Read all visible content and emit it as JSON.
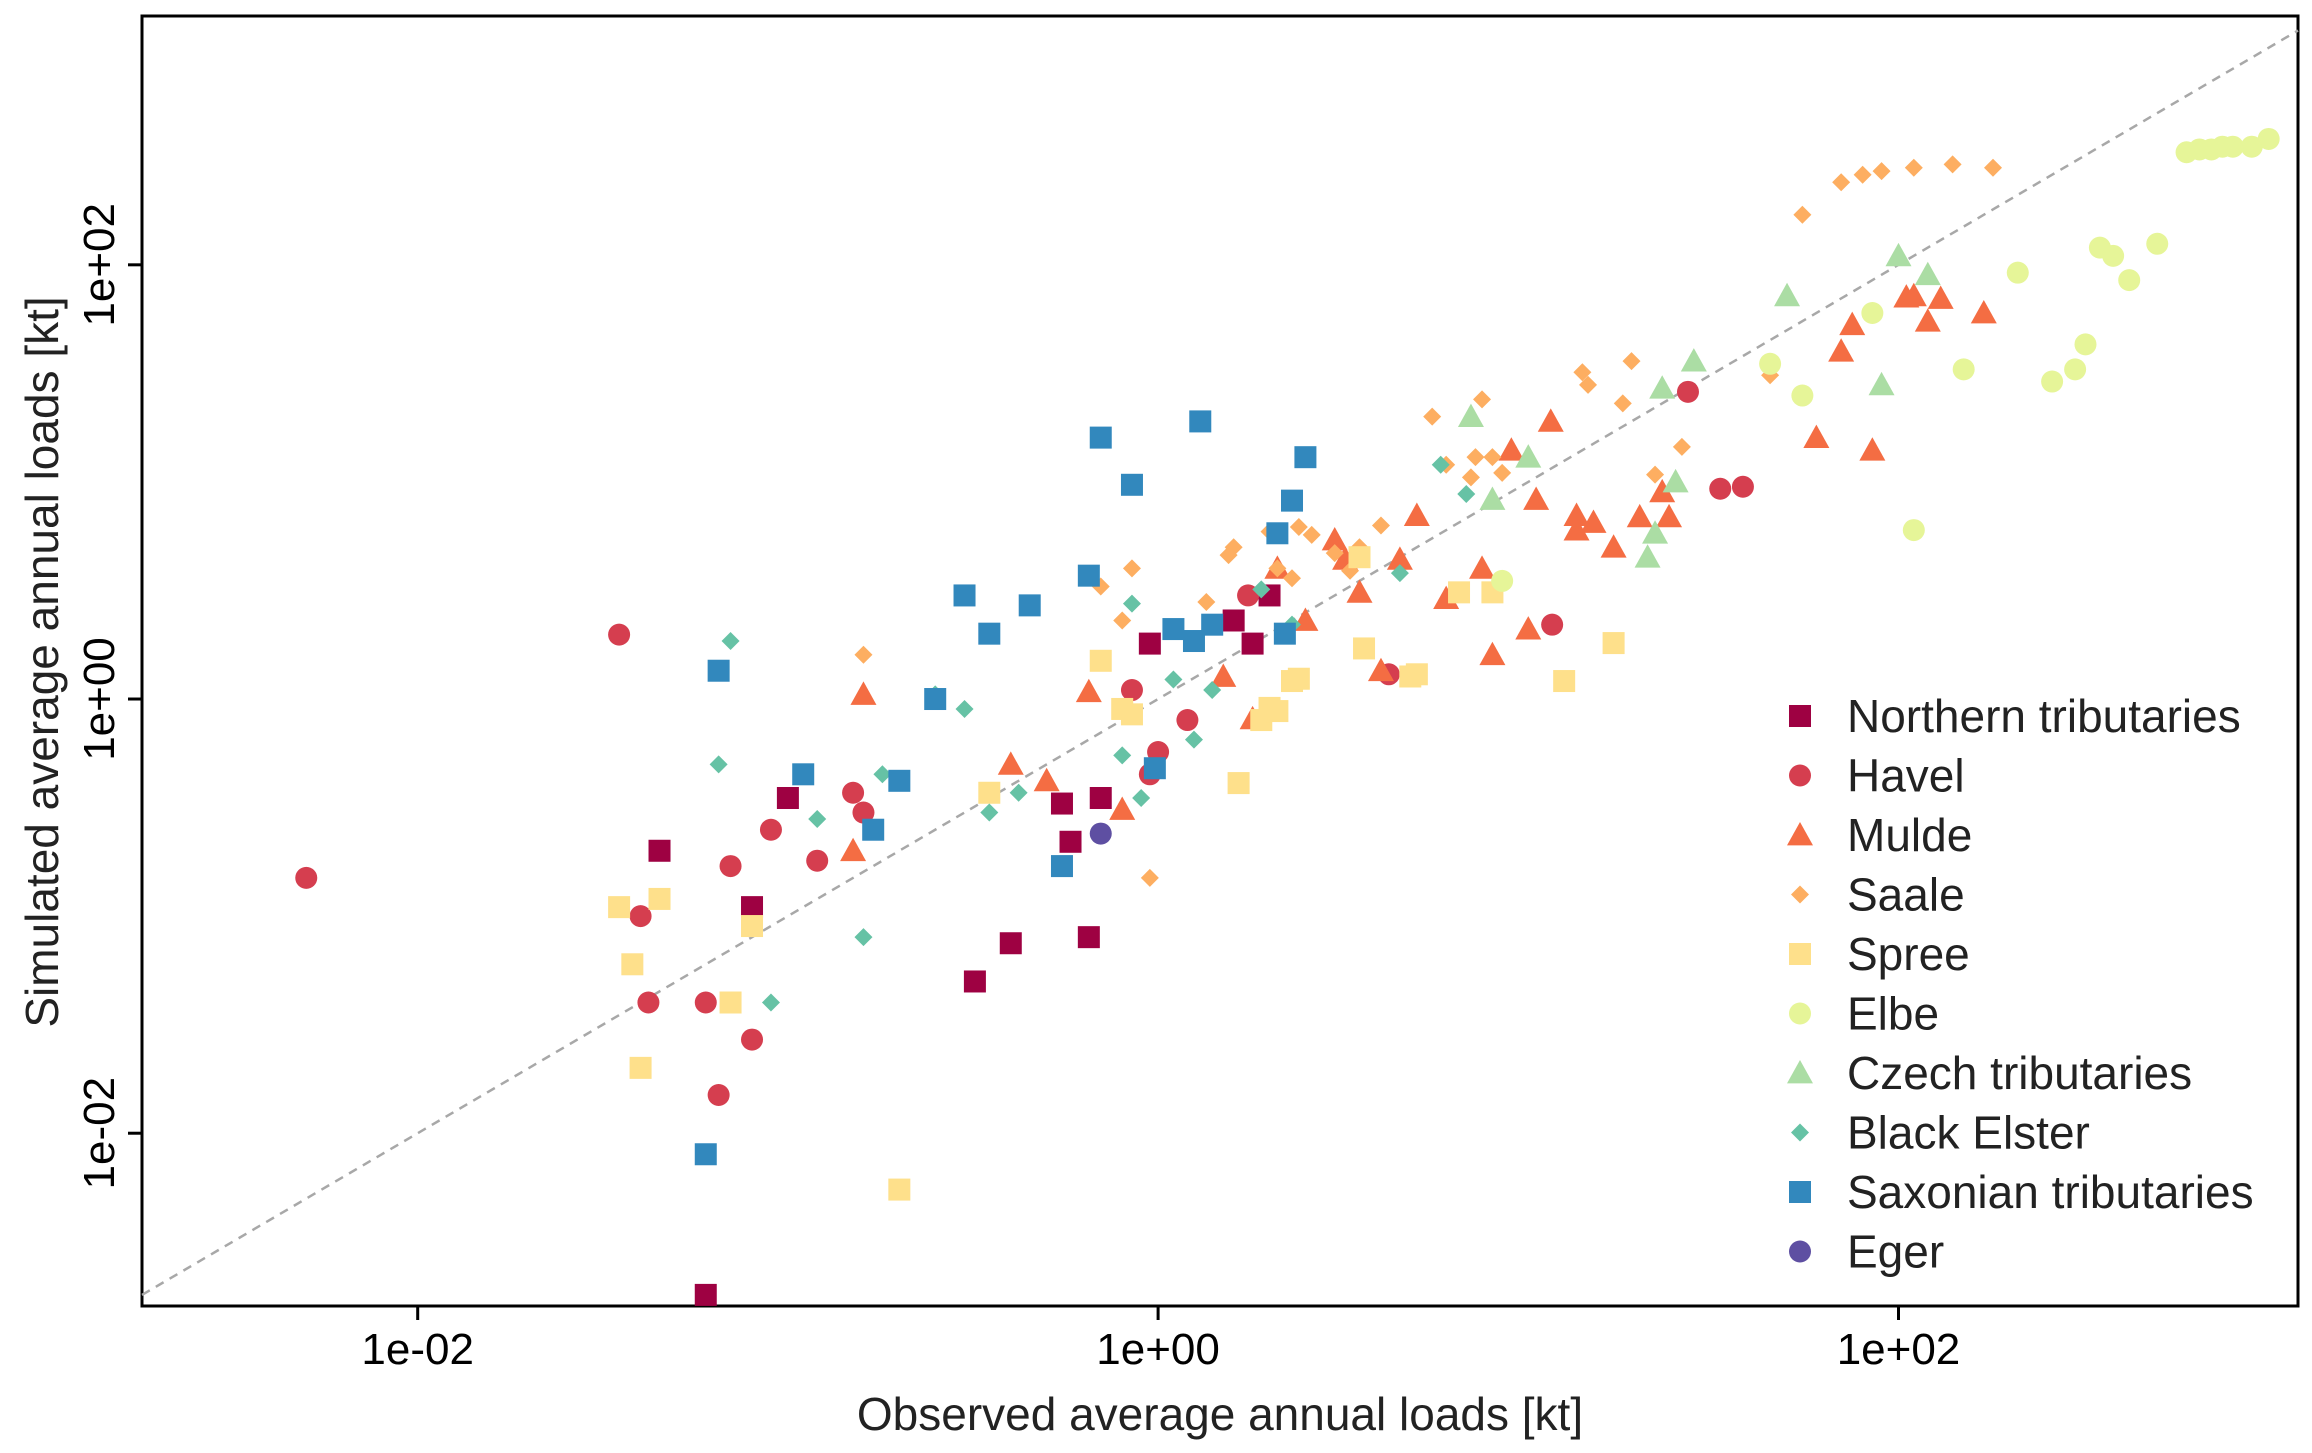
{
  "chart_data": {
    "type": "scatter",
    "title": "",
    "xlabel": "Observed average annual loads [kt]",
    "ylabel": "Simulated average annual loads [kt]",
    "x_scale": "log10",
    "y_scale": "log10",
    "xlim": [
      0.0018,
      1200
    ],
    "ylim": [
      0.0016,
      1400
    ],
    "x_ticks": [
      {
        "value": 0.01,
        "label": "1e-02"
      },
      {
        "value": 1,
        "label": "1e+00"
      },
      {
        "value": 100,
        "label": "1e+02"
      }
    ],
    "y_ticks": [
      {
        "value": 0.01,
        "label": "1e-02"
      },
      {
        "value": 1,
        "label": "1e+00"
      },
      {
        "value": 100,
        "label": "1e+02"
      }
    ],
    "reference_line": "1:1",
    "legend_position": "bottom-right",
    "series": [
      {
        "name": "Northern tributaries",
        "marker": "square",
        "color": "#9e0142",
        "points": [
          [
            0.045,
            0.2
          ],
          [
            0.06,
            0.0018
          ],
          [
            0.1,
            0.35
          ],
          [
            0.08,
            0.11
          ],
          [
            0.32,
            0.05
          ],
          [
            0.4,
            0.075
          ],
          [
            0.55,
            0.33
          ],
          [
            0.65,
            0.08
          ],
          [
            0.58,
            0.22
          ],
          [
            0.7,
            0.35
          ],
          [
            0.95,
            1.8
          ],
          [
            1.6,
            2.3
          ],
          [
            1.8,
            1.8
          ],
          [
            2.0,
            3.0
          ]
        ]
      },
      {
        "name": "Havel",
        "marker": "circle",
        "color": "#d53e4f",
        "points": [
          [
            0.005,
            0.15
          ],
          [
            0.035,
            1.98
          ],
          [
            0.04,
            0.1
          ],
          [
            0.042,
            0.04
          ],
          [
            0.06,
            0.04
          ],
          [
            0.065,
            0.015
          ],
          [
            0.07,
            0.17
          ],
          [
            0.08,
            0.027
          ],
          [
            0.09,
            0.25
          ],
          [
            0.12,
            0.18
          ],
          [
            0.15,
            0.37
          ],
          [
            0.16,
            0.3
          ],
          [
            0.85,
            1.1
          ],
          [
            0.95,
            0.45
          ],
          [
            1.0,
            0.57
          ],
          [
            1.2,
            0.8
          ],
          [
            1.75,
            3.0
          ],
          [
            4.2,
            1.3
          ],
          [
            11.6,
            2.2
          ],
          [
            27,
            26
          ],
          [
            33,
            9.3
          ],
          [
            38,
            9.5
          ]
        ]
      },
      {
        "name": "Mulde",
        "marker": "triangle",
        "color": "#f46d43",
        "points": [
          [
            0.15,
            0.2
          ],
          [
            0.16,
            1.05
          ],
          [
            0.4,
            0.5
          ],
          [
            0.5,
            0.42
          ],
          [
            0.65,
            1.08
          ],
          [
            0.8,
            0.31
          ],
          [
            1.5,
            1.27
          ],
          [
            1.8,
            0.81
          ],
          [
            2.1,
            4.0
          ],
          [
            2.5,
            2.3
          ],
          [
            3.0,
            5.4
          ],
          [
            3.2,
            4.4
          ],
          [
            3.5,
            3.1
          ],
          [
            4.0,
            1.35
          ],
          [
            4.5,
            4.4
          ],
          [
            5.0,
            7.0
          ],
          [
            6.0,
            2.9
          ],
          [
            7.5,
            4.0
          ],
          [
            8.0,
            1.6
          ],
          [
            9.0,
            14
          ],
          [
            10,
            2.1
          ],
          [
            10.5,
            8.3
          ],
          [
            11.5,
            19
          ],
          [
            13.5,
            6.0
          ],
          [
            13.5,
            7.0
          ],
          [
            15,
            6.5
          ],
          [
            17,
            5.0
          ],
          [
            20,
            6.9
          ],
          [
            23,
            9.0
          ],
          [
            24,
            6.9
          ],
          [
            60,
            16
          ],
          [
            70,
            40
          ],
          [
            75,
            53
          ],
          [
            85,
            14
          ],
          [
            105,
            71
          ],
          [
            110,
            72
          ],
          [
            120,
            55
          ],
          [
            130,
            70
          ],
          [
            170,
            60
          ]
        ]
      },
      {
        "name": "Saale",
        "marker": "diamond",
        "color": "#fdae61",
        "points": [
          [
            0.16,
            1.6
          ],
          [
            0.7,
            3.3
          ],
          [
            0.8,
            2.3
          ],
          [
            0.85,
            4.0
          ],
          [
            0.95,
            0.15
          ],
          [
            1.35,
            2.8
          ],
          [
            1.55,
            4.6
          ],
          [
            1.6,
            5.0
          ],
          [
            2.0,
            5.9
          ],
          [
            2.1,
            4.0
          ],
          [
            2.3,
            3.6
          ],
          [
            2.4,
            6.2
          ],
          [
            2.6,
            5.7
          ],
          [
            3.0,
            4.7
          ],
          [
            3.3,
            3.9
          ],
          [
            3.5,
            5.0
          ],
          [
            4.0,
            6.3
          ],
          [
            5.5,
            20
          ],
          [
            6.0,
            12
          ],
          [
            7.0,
            10.5
          ],
          [
            7.2,
            13.0
          ],
          [
            7.5,
            24
          ],
          [
            8.0,
            13
          ],
          [
            8.5,
            11
          ],
          [
            14,
            32
          ],
          [
            14.5,
            28
          ],
          [
            18,
            23
          ],
          [
            19,
            36
          ],
          [
            22,
            10.8
          ],
          [
            26,
            14.5
          ],
          [
            45,
            31
          ],
          [
            55,
            170
          ],
          [
            70,
            240
          ],
          [
            80,
            260
          ],
          [
            90,
            270
          ],
          [
            110,
            280
          ],
          [
            140,
            290
          ],
          [
            180,
            280
          ]
        ]
      },
      {
        "name": "Spree",
        "marker": "square",
        "color": "#fee08b",
        "points": [
          [
            0.035,
            0.11
          ],
          [
            0.038,
            0.06
          ],
          [
            0.04,
            0.02
          ],
          [
            0.045,
            0.12
          ],
          [
            0.07,
            0.04
          ],
          [
            0.08,
            0.09
          ],
          [
            0.2,
            0.0055
          ],
          [
            0.35,
            0.37
          ],
          [
            0.7,
            1.5
          ],
          [
            0.8,
            0.9
          ],
          [
            0.85,
            0.85
          ],
          [
            1.65,
            0.41
          ],
          [
            1.9,
            0.8
          ],
          [
            2.0,
            0.91
          ],
          [
            2.1,
            0.88
          ],
          [
            2.3,
            1.21
          ],
          [
            2.4,
            1.24
          ],
          [
            3.5,
            4.5
          ],
          [
            3.6,
            1.71
          ],
          [
            4.8,
            1.27
          ],
          [
            5.0,
            1.3
          ],
          [
            6.5,
            3.1
          ],
          [
            8.0,
            3.1
          ],
          [
            12.5,
            1.21
          ],
          [
            17,
            1.81
          ]
        ]
      },
      {
        "name": "Elbe",
        "marker": "circle",
        "color": "#e6f598",
        "points": [
          [
            8.5,
            3.5
          ],
          [
            45,
            35
          ],
          [
            55,
            25
          ],
          [
            85,
            60
          ],
          [
            110,
            6.0
          ],
          [
            150,
            33
          ],
          [
            210,
            92
          ],
          [
            260,
            29
          ],
          [
            300,
            33
          ],
          [
            320,
            43
          ],
          [
            350,
            120
          ],
          [
            380,
            110
          ],
          [
            420,
            85
          ],
          [
            500,
            125
          ],
          [
            600,
            330
          ],
          [
            650,
            340
          ],
          [
            700,
            340
          ],
          [
            750,
            350
          ],
          [
            800,
            350
          ],
          [
            900,
            350
          ],
          [
            1000,
            380
          ]
        ]
      },
      {
        "name": "Czech tributaries",
        "marker": "triangle",
        "color": "#abdda4",
        "points": [
          [
            7.0,
            20
          ],
          [
            8.0,
            8.3
          ],
          [
            10,
            13
          ],
          [
            21,
            4.5
          ],
          [
            22,
            5.8
          ],
          [
            23,
            27
          ],
          [
            25,
            10
          ],
          [
            28,
            36
          ],
          [
            50,
            72
          ],
          [
            90,
            28
          ],
          [
            100,
            110
          ],
          [
            120,
            90
          ]
        ]
      },
      {
        "name": "Black Elster",
        "marker": "diamond",
        "color": "#66c2a5",
        "points": [
          [
            0.065,
            0.5
          ],
          [
            0.07,
            1.85
          ],
          [
            0.09,
            0.04
          ],
          [
            0.12,
            0.28
          ],
          [
            0.16,
            0.08
          ],
          [
            0.18,
            0.45
          ],
          [
            0.25,
            1.05
          ],
          [
            0.3,
            0.9
          ],
          [
            0.35,
            0.3
          ],
          [
            0.42,
            0.37
          ],
          [
            0.8,
            0.55
          ],
          [
            0.85,
            2.75
          ],
          [
            0.9,
            0.35
          ],
          [
            1.1,
            1.23
          ],
          [
            1.25,
            0.65
          ],
          [
            1.4,
            1.1
          ],
          [
            1.9,
            3.2
          ],
          [
            2.3,
            2.2
          ],
          [
            4.5,
            3.8
          ],
          [
            5.8,
            12
          ],
          [
            6.8,
            8.8
          ]
        ]
      },
      {
        "name": "Saxonian tributaries",
        "marker": "square",
        "color": "#3288bd",
        "points": [
          [
            0.06,
            0.008
          ],
          [
            0.065,
            1.35
          ],
          [
            0.11,
            0.45
          ],
          [
            0.17,
            0.25
          ],
          [
            0.2,
            0.42
          ],
          [
            0.25,
            1.0
          ],
          [
            0.3,
            3.0
          ],
          [
            0.35,
            2.0
          ],
          [
            0.45,
            2.7
          ],
          [
            0.55,
            0.17
          ],
          [
            0.65,
            3.7
          ],
          [
            0.7,
            16
          ],
          [
            0.85,
            9.7
          ],
          [
            0.98,
            0.48
          ],
          [
            1.1,
            2.1
          ],
          [
            1.25,
            1.85
          ],
          [
            1.3,
            19
          ],
          [
            1.4,
            2.2
          ],
          [
            2.1,
            5.8
          ],
          [
            2.2,
            2.0
          ],
          [
            2.3,
            8.2
          ],
          [
            2.5,
            13
          ]
        ]
      },
      {
        "name": "Eger",
        "marker": "circle",
        "color": "#5e4fa2",
        "points": [
          [
            0.7,
            0.24
          ]
        ]
      }
    ]
  }
}
